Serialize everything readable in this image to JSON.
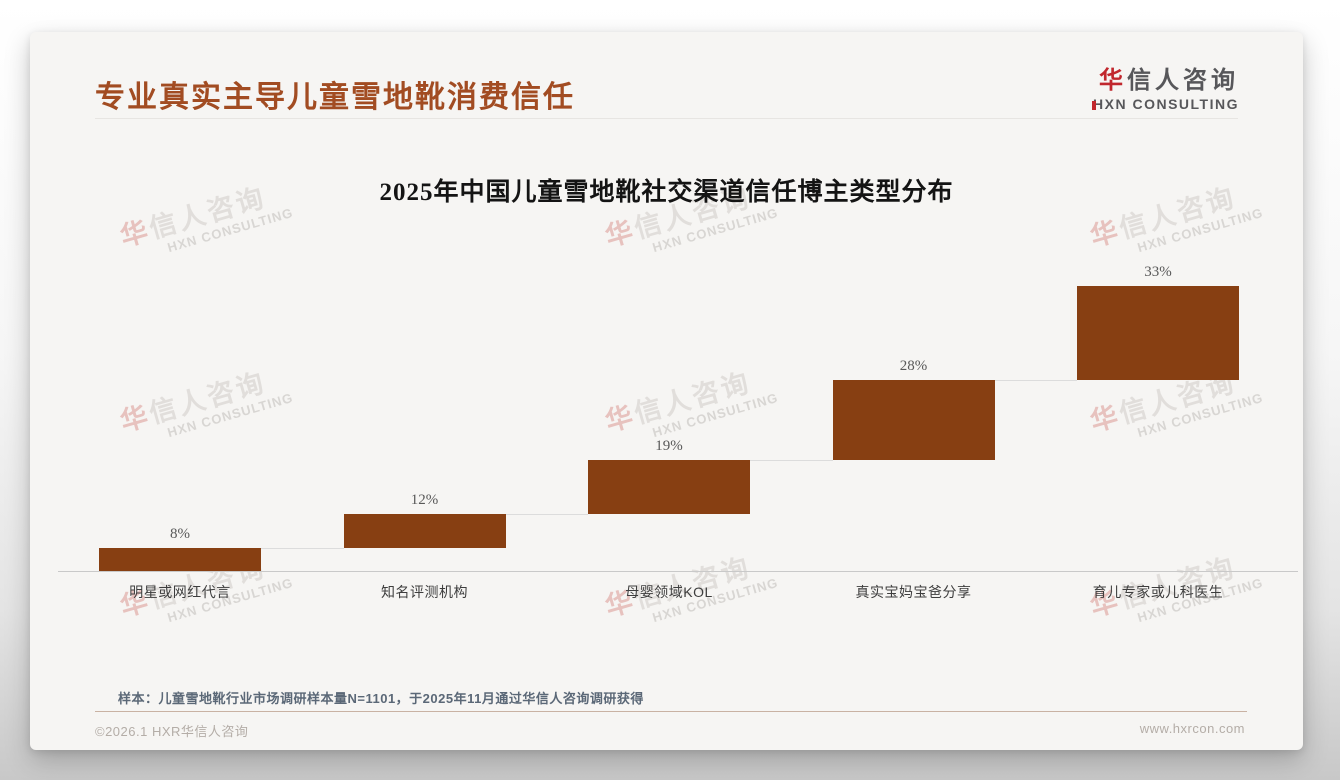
{
  "page": {
    "title": "专业真实主导儿童雪地靴消费信任",
    "logo": {
      "brand_first_char": "华",
      "brand_rest": "信人咨询",
      "brand_sub": "HXN CONSULTING"
    },
    "watermark": {
      "cn_first": "华",
      "cn_rest": "信人咨询",
      "en": "HXN CONSULTING"
    },
    "note": "样本：儿童雪地靴行业市场调研样本量N=1101，于2025年11月通过华信人咨询调研获得",
    "footer": {
      "left": "©2026.1 HXR华信人咨询",
      "right": "www.hxrcon.com"
    }
  },
  "colors": {
    "title_accent": "#a24c22",
    "brand_red": "#c1272d",
    "bar_brown": "#873f12",
    "note_slate": "#5b6877",
    "footer_gray": "#b4ada7"
  },
  "chart_data": {
    "type": "bar",
    "subtype": "waterfall-step",
    "title": "2025年中国儿童雪地靴社交渠道信任博主类型分布",
    "categories": [
      "明星或网红代言",
      "知名评测机构",
      "母婴领域KOL",
      "真实宝妈宝爸分享",
      "育儿专家或儿科医生"
    ],
    "values": [
      8,
      12,
      19,
      28,
      33
    ],
    "labels": [
      "8%",
      "12%",
      "19%",
      "28%",
      "33%"
    ],
    "cumulative": [
      8,
      20,
      39,
      67,
      100
    ],
    "total": 100,
    "ylim": [
      0,
      100
    ],
    "grid": false,
    "legend": "none",
    "bar_color": "#873f12",
    "value_label_color": "#595959",
    "axis_color": "#c9c9c9"
  }
}
